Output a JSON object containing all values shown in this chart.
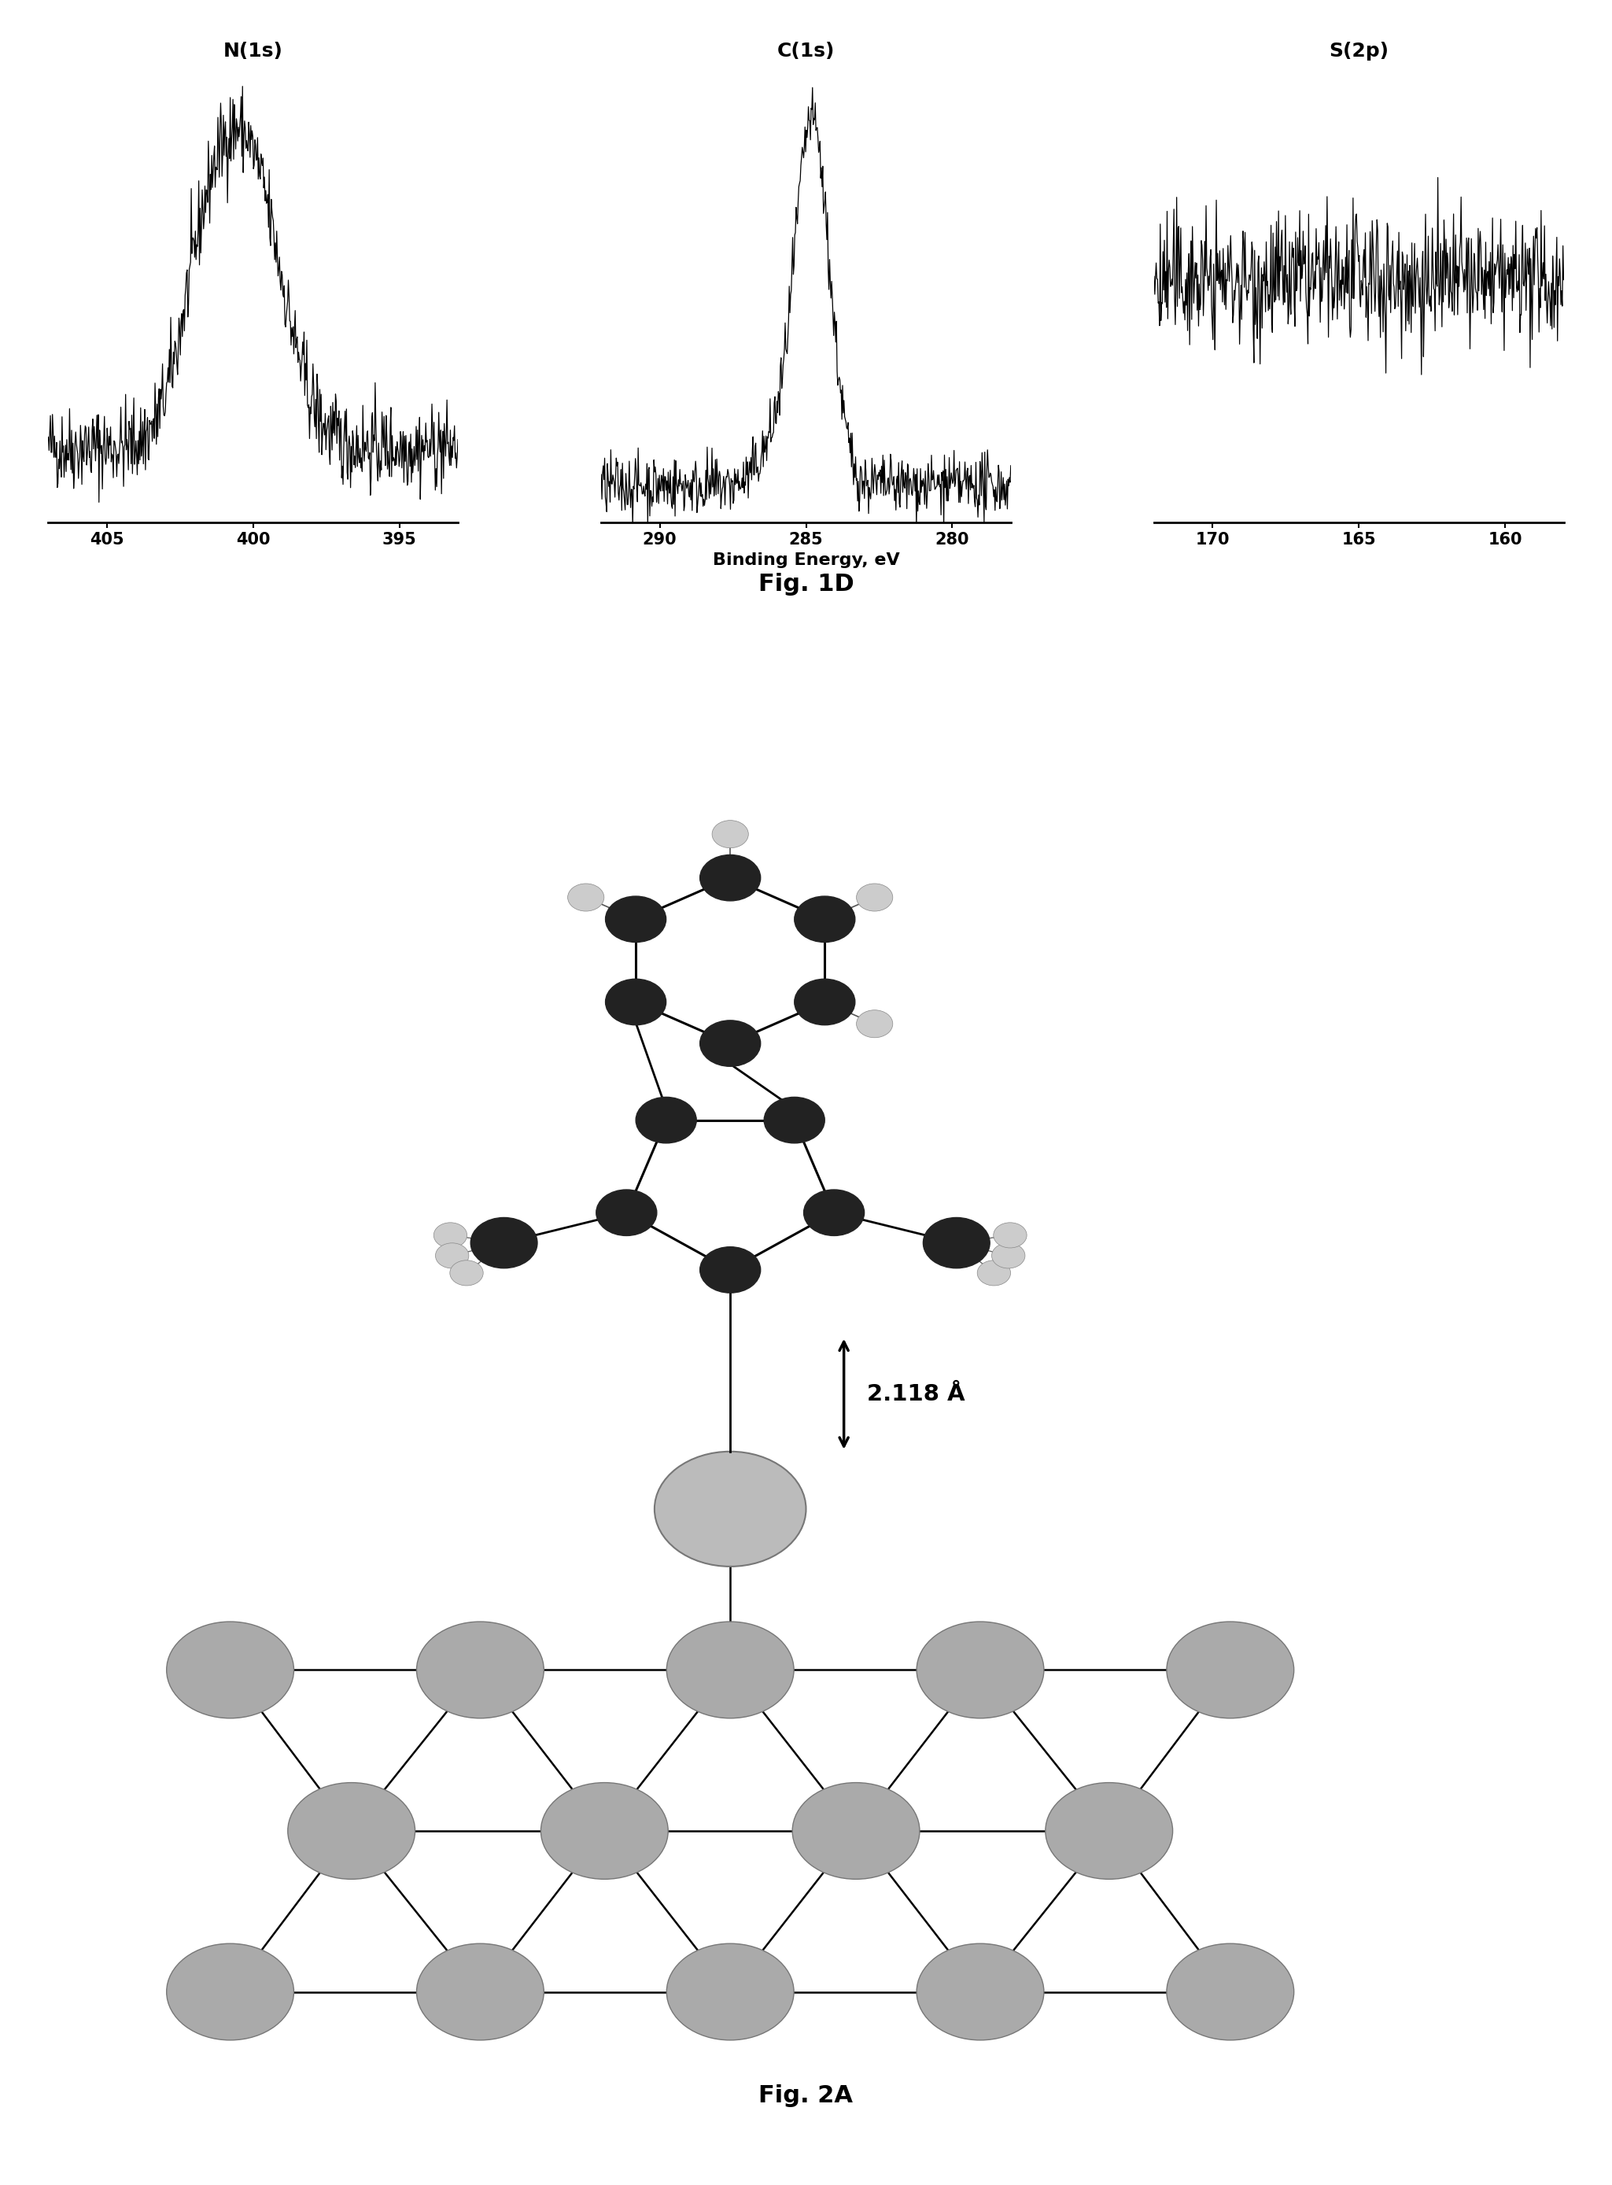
{
  "fig1d_label": "Fig. 1D",
  "fig2a_label": "Fig. 2A",
  "distance_label": "2.118 Å",
  "binding_energy_label": "Binding Energy, eV",
  "n1s_title": "N(1s)",
  "c1s_title": "C(1s)",
  "s2p_title": "S(2p)",
  "n1s_xticks": [
    405,
    400,
    395
  ],
  "c1s_xticks": [
    290,
    285,
    280
  ],
  "s2p_xticks": [
    170,
    165,
    160
  ],
  "bg_color": "#ffffff",
  "line_color": "#000000",
  "title_fontsize": 18,
  "tick_fontsize": 15,
  "label_fontsize": 16,
  "fig1d_fontsize": 22,
  "fig2a_fontsize": 22,
  "surface_color": "#aaaaaa",
  "surface_edge": "#777777",
  "carbon_color": "#222222",
  "h_color": "#cccccc"
}
